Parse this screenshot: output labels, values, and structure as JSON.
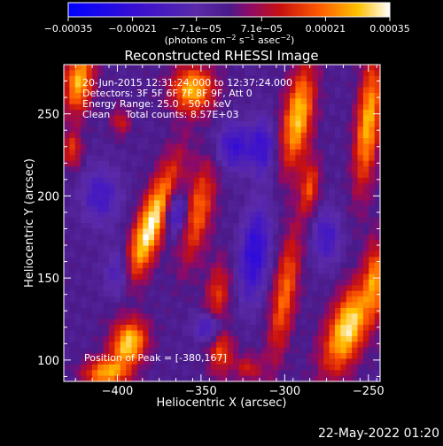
{
  "chart_data": {
    "type": "heatmap",
    "title": "Reconstructed RHESSI Image",
    "xlabel": "Heliocentric X (arcsec)",
    "ylabel": "Heliocentric Y (arcsec)",
    "xlim": [
      -432,
      -243
    ],
    "ylim": [
      87,
      280
    ],
    "x_ticks": [
      -400,
      -350,
      -300,
      -250
    ],
    "y_ticks": [
      100,
      150,
      200,
      250
    ],
    "x_tick_labels": [
      "−400",
      "−350",
      "−300",
      "−250"
    ],
    "y_tick_labels": [
      "100",
      "150",
      "200",
      "250"
    ],
    "colorbar": {
      "range": [
        -0.00035,
        0.00035
      ],
      "ticks": [
        -0.00035,
        -0.00021,
        -7.1e-05,
        7.1e-05,
        0.00021,
        0.00035
      ],
      "tick_labels": [
        "−0.00035",
        "−0.00021",
        "−7.1e−05",
        "7.1e−05",
        "0.00021",
        "0.00035"
      ],
      "units_main": "(photons cm",
      "units_exp1": "−2",
      "units_mid": " s",
      "units_exp2": "−1",
      "units_end": " asec",
      "units_exp3": "−2",
      "units_close": ")"
    },
    "annotations": {
      "time": "20-Jun-2015 12:31:24.000 to 12:37:24.000",
      "detectors": "Detectors: 3F 5F 6F 7F 8F 9F, Att 0",
      "energy": "Energy Range: 25.0 - 50.0 keV",
      "clean": "Clean     Total counts: 8.57E+03",
      "peak": "Position of Peak = [-380,167]"
    },
    "peak": [
      -380,
      167
    ],
    "blobs": [
      {
        "x": -380,
        "y": 182,
        "sx": 6,
        "sy": 28,
        "rot": 0.35,
        "a": 1.0
      },
      {
        "x": -393,
        "y": 110,
        "sx": 7,
        "sy": 10,
        "rot": 0.3,
        "a": 0.9
      },
      {
        "x": -407,
        "y": 92,
        "sx": 9,
        "sy": 6,
        "rot": 0.0,
        "a": 0.75
      },
      {
        "x": -423,
        "y": 270,
        "sx": 6,
        "sy": 14,
        "rot": 0.1,
        "a": 0.8
      },
      {
        "x": -427,
        "y": 228,
        "sx": 4,
        "sy": 8,
        "rot": 0.0,
        "a": 0.45
      },
      {
        "x": -355,
        "y": 265,
        "sx": 9,
        "sy": 10,
        "rot": 0.2,
        "a": 0.8
      },
      {
        "x": -352,
        "y": 190,
        "sx": 6,
        "sy": 22,
        "rot": 0.2,
        "a": 0.6
      },
      {
        "x": -340,
        "y": 140,
        "sx": 5,
        "sy": 14,
        "rot": 0.1,
        "a": 0.45
      },
      {
        "x": -338,
        "y": 105,
        "sx": 5,
        "sy": 10,
        "rot": 0.1,
        "a": 0.5
      },
      {
        "x": -322,
        "y": 95,
        "sx": 6,
        "sy": 6,
        "rot": 0.0,
        "a": 0.35
      },
      {
        "x": -292,
        "y": 248,
        "sx": 6,
        "sy": 22,
        "rot": 0.15,
        "a": 0.85
      },
      {
        "x": -285,
        "y": 205,
        "sx": 4,
        "sy": 12,
        "rot": 0.1,
        "a": 0.5
      },
      {
        "x": -300,
        "y": 140,
        "sx": 5,
        "sy": 28,
        "rot": 0.15,
        "a": 0.6
      },
      {
        "x": -262,
        "y": 120,
        "sx": 8,
        "sy": 20,
        "rot": 0.35,
        "a": 0.95
      },
      {
        "x": -250,
        "y": 245,
        "sx": 5,
        "sy": 28,
        "rot": 0.1,
        "a": 0.8
      },
      {
        "x": -246,
        "y": 150,
        "sx": 4,
        "sy": 16,
        "rot": 0.0,
        "a": 0.55
      },
      {
        "x": -398,
        "y": 245,
        "sx": 4,
        "sy": 6,
        "rot": 0.0,
        "a": 0.35
      },
      {
        "x": -365,
        "y": 190,
        "sx": 5,
        "sy": 10,
        "rot": 0.0,
        "a": -0.55
      },
      {
        "x": -330,
        "y": 230,
        "sx": 8,
        "sy": 10,
        "rot": 0.0,
        "a": -0.5
      },
      {
        "x": -318,
        "y": 165,
        "sx": 6,
        "sy": 20,
        "rot": 0.1,
        "a": -0.6
      },
      {
        "x": -313,
        "y": 230,
        "sx": 5,
        "sy": 12,
        "rot": 0.0,
        "a": -0.45
      },
      {
        "x": -398,
        "y": 150,
        "sx": 6,
        "sy": 12,
        "rot": 0.0,
        "a": -0.45
      },
      {
        "x": -410,
        "y": 200,
        "sx": 8,
        "sy": 12,
        "rot": 0.0,
        "a": -0.4
      },
      {
        "x": -275,
        "y": 175,
        "sx": 6,
        "sy": 12,
        "rot": 0.0,
        "a": -0.4
      },
      {
        "x": -345,
        "y": 120,
        "sx": 6,
        "sy": 6,
        "rot": 0.0,
        "a": -0.5
      }
    ]
  },
  "footer": {
    "timestamp": "22-May-2022 01:20"
  }
}
